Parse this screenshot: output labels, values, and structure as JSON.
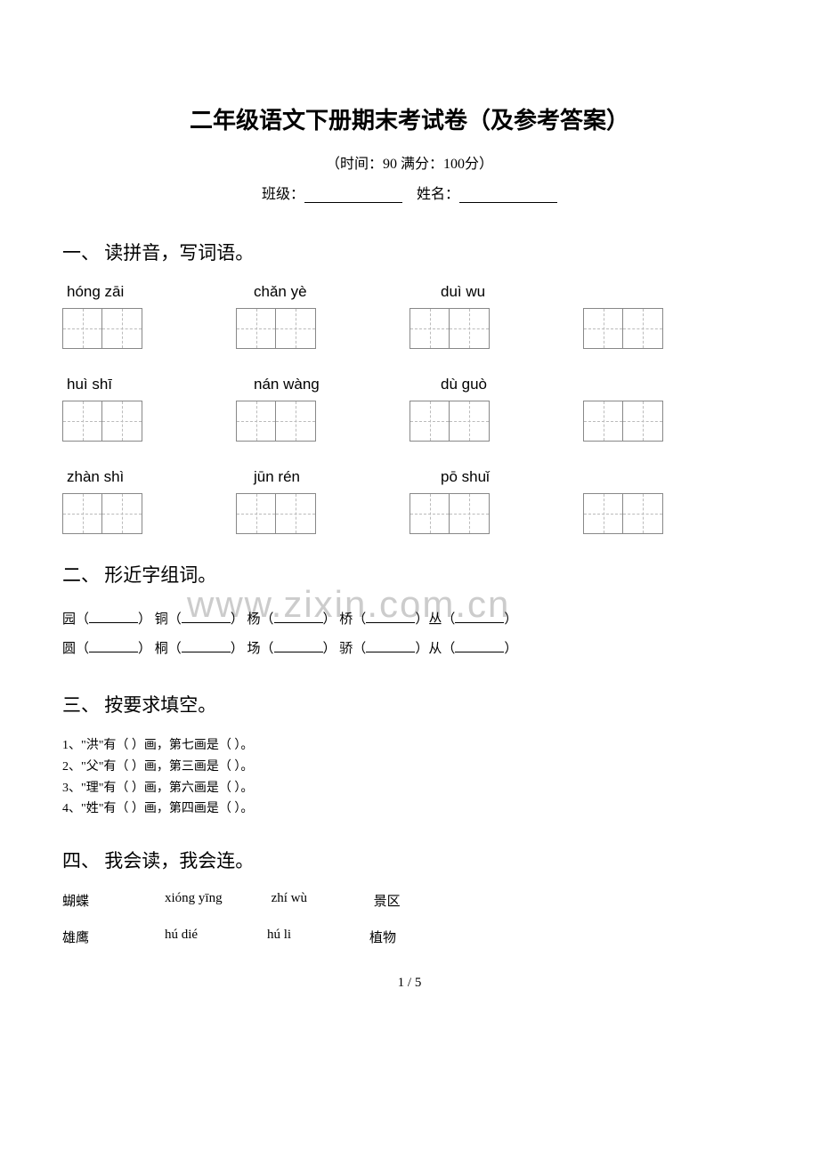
{
  "title": "二年级语文下册期末考试卷（及参考答案）",
  "subtitle": "（时间：90   满分：100分）",
  "info": {
    "class_label": "班级：",
    "name_label": "姓名："
  },
  "watermark": "www.zixin.com.cn",
  "section1": {
    "heading": "一、 读拼音，写词语。",
    "rows": [
      {
        "pinyins": [
          "hóng  zāi",
          "chǎn  yè",
          "duì  wu"
        ]
      },
      {
        "pinyins": [
          "huì  shī",
          "nán  wàng",
          "dù  guò"
        ]
      },
      {
        "pinyins": [
          "zhàn  shì",
          "jūn  rén",
          "pō  shuǐ"
        ]
      }
    ]
  },
  "section2": {
    "heading": "二、 形近字组词。",
    "line1": [
      "园（",
      "） 铜（",
      "） 杨（",
      "） 桥（",
      "）丛（",
      "）"
    ],
    "line2": [
      "圆（",
      "） 桐（",
      "） 场（",
      "） 骄（",
      "）从（",
      "）"
    ]
  },
  "section3": {
    "heading": "三、 按要求填空。",
    "items": [
      "1、\"洪\"有（        ）画，第七画是（          ）。",
      "2、\"父\"有（        ）画，第三画是（          ）。",
      "3、\"理\"有（        ）画，第六画是（          ）。",
      "4、\"姓\"有（        ）画，第四画是（          ）。"
    ]
  },
  "section4": {
    "heading": "四、 我会读，我会连。",
    "rows": [
      [
        "蝴蝶",
        "xióng yīng",
        "zhí wù",
        "景区"
      ],
      [
        "雄鹰",
        "hú dié",
        "hú li",
        "植物"
      ]
    ]
  },
  "page_number": "1 / 5",
  "colors": {
    "text": "#000000",
    "background": "#ffffff",
    "watermark": "#cccccc",
    "box_border": "#888888",
    "dash": "#bbbbbb"
  }
}
